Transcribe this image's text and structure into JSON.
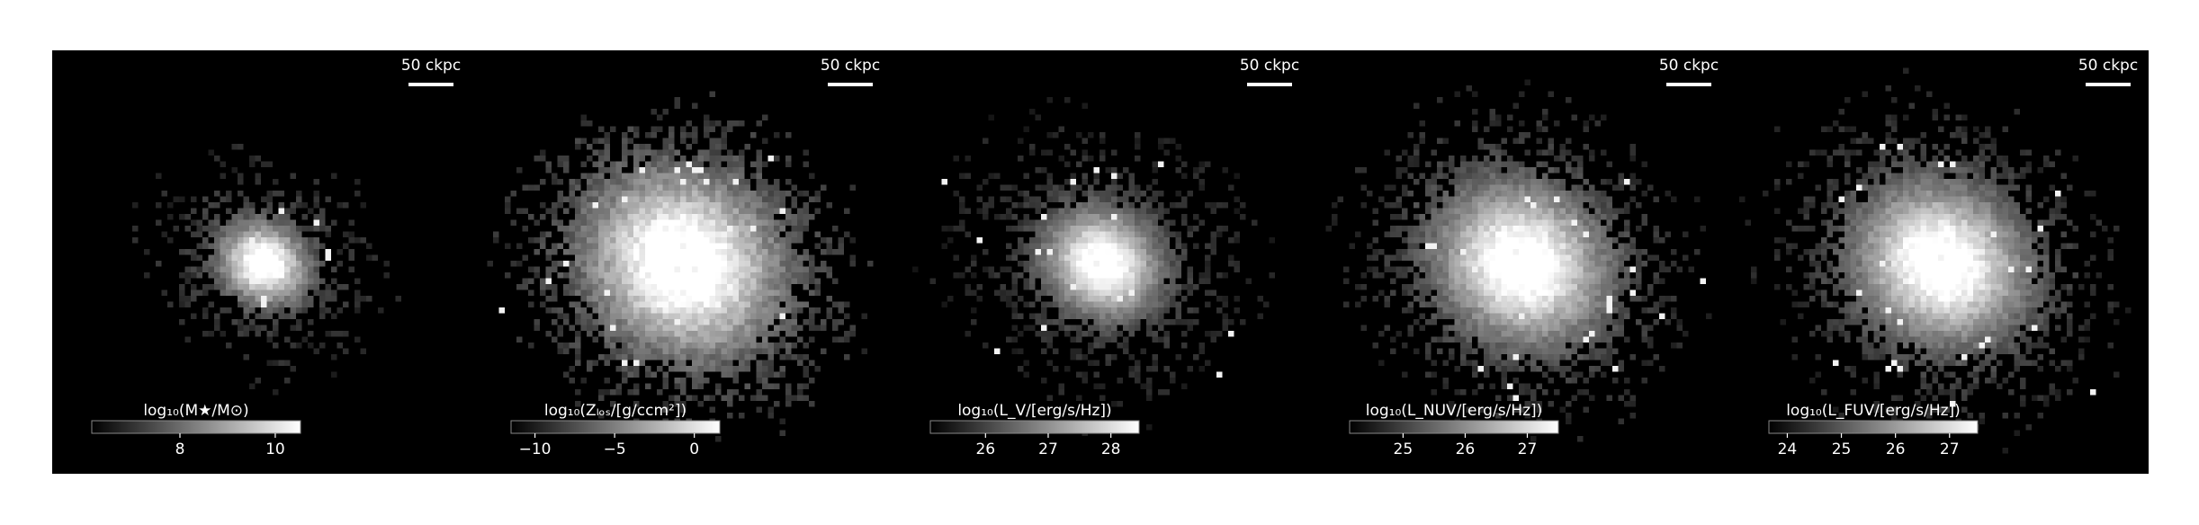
{
  "panels": [
    {
      "scale_label": "50 ckpc",
      "colorbar": {
        "label": "log₁₀(M★/M⊙)",
        "lim": [
          6.15,
          10.53
        ],
        "ticks": [
          8,
          10
        ]
      }
    },
    {
      "scale_label": "50 ckpc",
      "colorbar": {
        "label": "log₁₀(Zₗₒₛ/[g/ccm²])",
        "lim": [
          -11.5,
          1.6
        ],
        "ticks": [
          {
            "value": -10,
            "label": "−10"
          },
          {
            "value": -5,
            "label": "−5"
          },
          0
        ]
      }
    },
    {
      "scale_label": "50 ckpc",
      "colorbar": {
        "label": "log₁₀(L_V/[erg/s/Hz])",
        "lim": [
          25.12,
          28.45
        ],
        "ticks": [
          26,
          27,
          28
        ]
      }
    },
    {
      "scale_label": "50 ckpc",
      "colorbar": {
        "label": "log₁₀(L_NUV/[erg/s/Hz])",
        "lim": [
          24.14,
          27.5
        ],
        "ticks": [
          25,
          26,
          27
        ]
      }
    },
    {
      "scale_label": "50 ckpc",
      "colorbar": {
        "label": "log₁₀(L_FUV/[erg/s/Hz])",
        "lim": [
          23.66,
          27.52
        ],
        "ticks": [
          24,
          25,
          26,
          27
        ]
      }
    }
  ]
}
